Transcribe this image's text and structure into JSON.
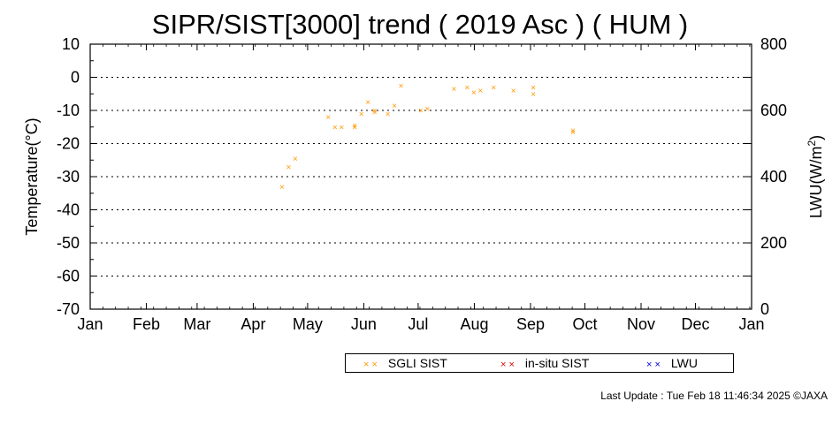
{
  "chart_data": {
    "type": "scatter",
    "title": "SIPR/SIST[3000] trend ( 2019 Asc ) ( HUM )",
    "ylabel": "Temperature(°C)",
    "y2label_main": "LWU(W/m",
    "y2label_sup": "2",
    "y2label_close": ")",
    "ylim": [
      -70,
      10
    ],
    "yticks": [
      "10",
      "0",
      "-10",
      "-20",
      "-30",
      "-40",
      "-50",
      "-60",
      "-70"
    ],
    "y2lim": [
      0,
      800
    ],
    "y2ticks": [
      "800",
      "600",
      "400",
      "200",
      "0"
    ],
    "xlim": [
      0,
      365
    ],
    "months": [
      "Jan",
      "Feb",
      "Mar",
      "Apr",
      "May",
      "Jun",
      "Jul",
      "Aug",
      "Sep",
      "Oct",
      "Nov",
      "Dec",
      "Jan"
    ],
    "grid": "dotted horizontal at y-ticks",
    "series": [
      {
        "name": "SGLI SIST",
        "color": "#ff9900",
        "points": [
          [
            2019.29,
            -33
          ],
          [
            2019.3,
            -27
          ],
          [
            2019.31,
            -24.5
          ],
          [
            2019.36,
            -12
          ],
          [
            2019.37,
            -15
          ],
          [
            2019.38,
            -15
          ],
          [
            2019.4,
            -15
          ],
          [
            2019.4,
            -14.5
          ],
          [
            2019.41,
            -11
          ],
          [
            2019.42,
            -7.5
          ],
          [
            2019.43,
            -10.5
          ],
          [
            2019.43,
            -10
          ],
          [
            2019.45,
            -11
          ],
          [
            2019.46,
            -8.5
          ],
          [
            2019.47,
            -2.5
          ],
          [
            2019.5,
            -10
          ],
          [
            2019.51,
            -9.5
          ],
          [
            2019.55,
            -3.5
          ],
          [
            2019.57,
            -3
          ],
          [
            2019.58,
            -4.5
          ],
          [
            2019.59,
            -4
          ],
          [
            2019.61,
            -3
          ],
          [
            2019.64,
            -4
          ],
          [
            2019.67,
            -3
          ],
          [
            2019.67,
            -5
          ],
          [
            2019.73,
            -16.5
          ],
          [
            2019.73,
            -16
          ]
        ]
      },
      {
        "name": "in-situ SIST",
        "color": "#dd0000",
        "points": []
      },
      {
        "name": "LWU",
        "color": "#0000dd",
        "points": []
      }
    ]
  },
  "legend": {
    "items": [
      {
        "label": "SGLI SIST",
        "color": "#ff9900"
      },
      {
        "label": "in-situ SIST",
        "color": "#dd0000"
      },
      {
        "label": "LWU",
        "color": "#0000dd"
      }
    ]
  },
  "footer": "Last Update : Tue Feb 18 11:46:34 2025  ©JAXA"
}
